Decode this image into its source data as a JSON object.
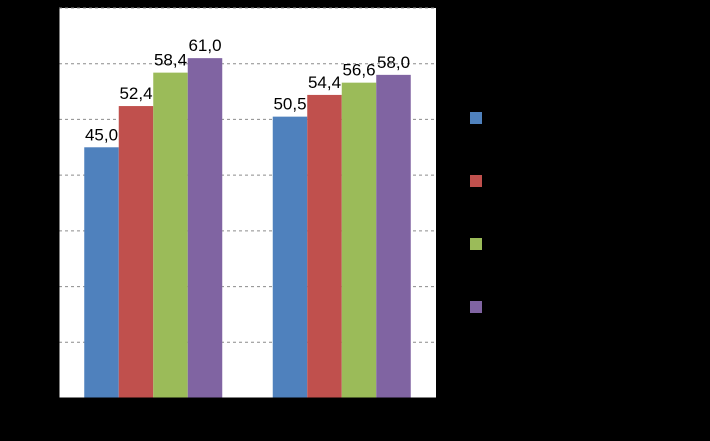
{
  "chart_data": {
    "type": "bar",
    "categories": [
      "",
      ""
    ],
    "series": [
      {
        "color": "#4F81BD",
        "values": [
          45.0,
          50.5
        ]
      },
      {
        "color": "#C0504D",
        "values": [
          52.4,
          54.4
        ]
      },
      {
        "color": "#9BBB59",
        "values": [
          58.4,
          56.6
        ]
      },
      {
        "color": "#8064A2",
        "values": [
          61.0,
          58.0
        ]
      }
    ],
    "value_labels": [
      [
        "45,0",
        "50,5"
      ],
      [
        "52,4",
        "54,4"
      ],
      [
        "58,4",
        "56,6"
      ],
      [
        "61,0",
        "58,0"
      ]
    ],
    "title": "",
    "xlabel": "",
    "ylabel": "",
    "ylim": [
      0,
      70
    ],
    "gridlines": true,
    "gridline_style": "dashed",
    "legend_position": "right"
  },
  "colors": {
    "background": "#000000",
    "plot_area": "#FFFFFF",
    "gridline": "#8C8C8C",
    "axis": "#000000"
  }
}
